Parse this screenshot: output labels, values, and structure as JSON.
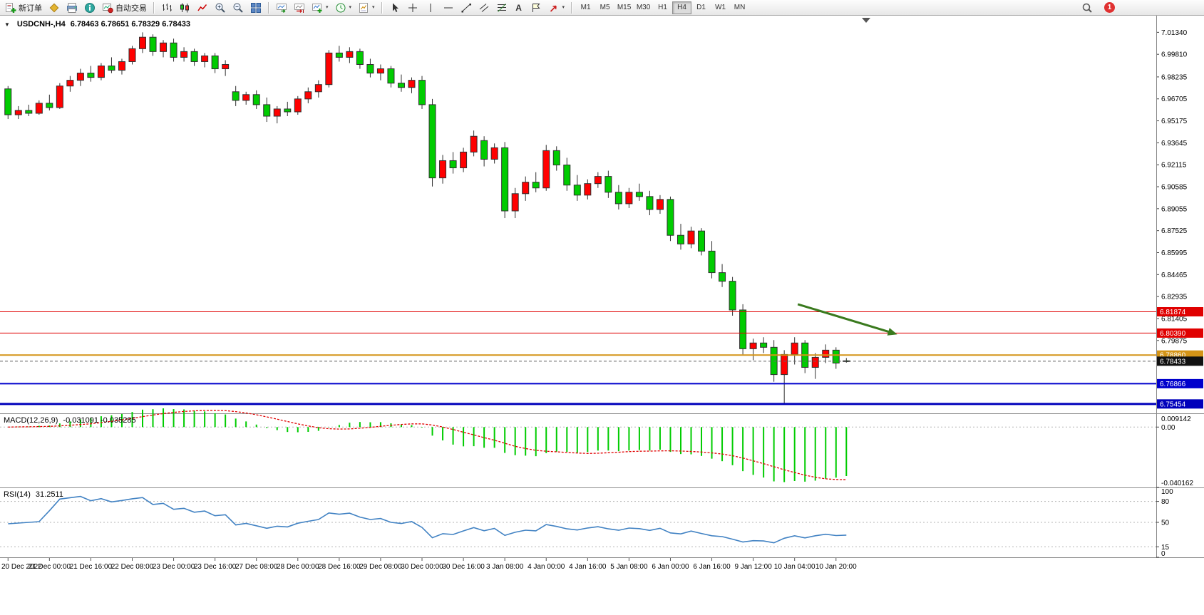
{
  "toolbar": {
    "new_order_label": "新订单",
    "auto_trading_label": "自动交易",
    "timeframes": [
      "M1",
      "M5",
      "M15",
      "M30",
      "H1",
      "H4",
      "D1",
      "W1",
      "MN"
    ],
    "active_timeframe": "H4",
    "notification_count": "1",
    "icon_glyphs": {
      "crosshair": "+",
      "text_tool": "A",
      "dropdown": "▾",
      "one_click": "▼"
    }
  },
  "chart": {
    "title_symbol": "USDCNH-,H4",
    "title_ohlc": "6.78463 6.78651 6.78329 6.78433"
  },
  "chart_data": {
    "type": "candlestick",
    "symbol": "USDCNH-",
    "period": "H4",
    "price_axis": {
      "max": 7.025,
      "min": 6.748,
      "ticks": [
        "7.01340",
        "6.99810",
        "6.98235",
        "6.96705",
        "6.95175",
        "6.93645",
        "6.92115",
        "6.90585",
        "6.89055",
        "6.87525",
        "6.85995",
        "6.84465",
        "6.82935",
        "6.81405",
        "6.79875"
      ]
    },
    "time_labels": [
      "20 Dec 2022",
      "21 Dec 00:00",
      "21 Dec 16:00",
      "22 Dec 08:00",
      "23 Dec 00:00",
      "23 Dec 16:00",
      "27 Dec 08:00",
      "28 Dec 00:00",
      "28 Dec 16:00",
      "29 Dec 08:00",
      "30 Dec 00:00",
      "30 Dec 16:00",
      "3 Jan 08:00",
      "4 Jan 00:00",
      "4 Jan 16:00",
      "5 Jan 08:00",
      "6 Jan 00:00",
      "6 Jan 16:00",
      "9 Jan 12:00",
      "10 Jan 04:00",
      "10 Jan 20:00"
    ],
    "bars_per_label": 4,
    "chart_shift_fraction": 0.734,
    "candles": [
      [
        6.974,
        6.976,
        6.953,
        6.956
      ],
      [
        6.956,
        6.962,
        6.953,
        6.959
      ],
      [
        6.959,
        6.963,
        6.955,
        6.957
      ],
      [
        6.957,
        6.966,
        6.956,
        6.964
      ],
      [
        6.964,
        6.97,
        6.959,
        6.961
      ],
      [
        6.961,
        6.978,
        6.96,
        6.976
      ],
      [
        6.976,
        6.983,
        6.972,
        6.98
      ],
      [
        6.98,
        6.988,
        6.976,
        6.985
      ],
      [
        6.985,
        6.99,
        6.979,
        6.982
      ],
      [
        6.982,
        6.992,
        6.98,
        6.99
      ],
      [
        6.99,
        6.996,
        6.985,
        6.987
      ],
      [
        6.987,
        6.995,
        6.984,
        6.993
      ],
      [
        6.993,
        7.004,
        6.991,
        7.002
      ],
      [
        7.002,
        7.0134,
        6.999,
        7.01
      ],
      [
        7.01,
        7.012,
        6.997,
        7.0
      ],
      [
        7.0,
        7.008,
        6.996,
        7.006
      ],
      [
        7.006,
        7.009,
        6.993,
        6.996
      ],
      [
        6.996,
        7.003,
        6.993,
        7.0
      ],
      [
        7.0,
        7.002,
        6.99,
        6.993
      ],
      [
        6.993,
        6.999,
        6.989,
        6.997
      ],
      [
        6.997,
        6.999,
        6.985,
        6.988
      ],
      [
        6.988,
        6.994,
        6.983,
        6.991
      ],
      [
        6.972,
        6.976,
        6.962,
        6.966
      ],
      [
        6.966,
        6.972,
        6.963,
        6.97
      ],
      [
        6.97,
        6.973,
        6.96,
        6.963
      ],
      [
        6.963,
        6.968,
        6.951,
        6.955
      ],
      [
        6.955,
        6.962,
        6.95,
        6.96
      ],
      [
        6.96,
        6.965,
        6.955,
        6.958
      ],
      [
        6.958,
        6.969,
        6.956,
        6.967
      ],
      [
        6.967,
        6.975,
        6.964,
        6.972
      ],
      [
        6.972,
        6.98,
        6.968,
        6.977
      ],
      [
        6.977,
        7.001,
        6.975,
        6.999
      ],
      [
        6.999,
        7.004,
        6.993,
        6.996
      ],
      [
        6.996,
        7.003,
        6.992,
        7.0
      ],
      [
        7.0,
        7.002,
        6.988,
        6.991
      ],
      [
        6.991,
        6.995,
        6.982,
        6.985
      ],
      [
        6.985,
        6.991,
        6.98,
        6.988
      ],
      [
        6.988,
        6.99,
        6.975,
        6.978
      ],
      [
        6.978,
        6.984,
        6.972,
        6.975
      ],
      [
        6.975,
        6.982,
        6.971,
        6.98
      ],
      [
        6.98,
        6.983,
        6.96,
        6.963
      ],
      [
        6.963,
        6.967,
        6.906,
        6.912
      ],
      [
        6.912,
        6.928,
        6.908,
        6.924
      ],
      [
        6.924,
        6.93,
        6.915,
        6.919
      ],
      [
        6.919,
        6.933,
        6.916,
        6.93
      ],
      [
        6.93,
        6.945,
        6.927,
        6.941
      ],
      [
        6.938,
        6.941,
        6.92,
        6.925
      ],
      [
        6.925,
        6.936,
        6.922,
        6.933
      ],
      [
        6.933,
        6.937,
        6.884,
        6.889
      ],
      [
        6.889,
        6.905,
        6.884,
        6.901
      ],
      [
        6.901,
        6.913,
        6.896,
        6.909
      ],
      [
        6.909,
        6.916,
        6.902,
        6.905
      ],
      [
        6.905,
        6.935,
        6.903,
        6.931
      ],
      [
        6.931,
        6.934,
        6.917,
        6.921
      ],
      [
        6.921,
        6.926,
        6.903,
        6.907
      ],
      [
        6.907,
        6.914,
        6.896,
        6.9
      ],
      [
        6.9,
        6.911,
        6.897,
        6.908
      ],
      [
        6.908,
        6.916,
        6.905,
        6.913
      ],
      [
        6.913,
        6.917,
        6.898,
        6.902
      ],
      [
        6.902,
        6.907,
        6.89,
        6.894
      ],
      [
        6.894,
        6.905,
        6.891,
        6.902
      ],
      [
        6.902,
        6.908,
        6.896,
        6.899
      ],
      [
        6.899,
        6.903,
        6.886,
        6.89
      ],
      [
        6.89,
        6.9,
        6.887,
        6.897
      ],
      [
        6.897,
        6.899,
        6.868,
        6.872
      ],
      [
        6.872,
        6.88,
        6.862,
        6.866
      ],
      [
        6.866,
        6.878,
        6.863,
        6.875
      ],
      [
        6.875,
        6.877,
        6.858,
        6.861
      ],
      [
        6.861,
        6.868,
        6.842,
        6.846
      ],
      [
        6.846,
        6.852,
        6.836,
        6.84
      ],
      [
        6.84,
        6.843,
        6.816,
        6.82
      ],
      [
        6.82,
        6.824,
        6.789,
        6.793
      ],
      [
        6.793,
        6.8,
        6.785,
        6.797
      ],
      [
        6.797,
        6.801,
        6.79,
        6.794
      ],
      [
        6.794,
        6.799,
        6.77,
        6.775
      ],
      [
        6.775,
        6.792,
        6.755,
        6.789
      ],
      [
        6.789,
        6.801,
        6.782,
        6.797
      ],
      [
        6.797,
        6.799,
        6.776,
        6.78
      ],
      [
        6.78,
        6.79,
        6.772,
        6.787
      ],
      [
        6.787,
        6.796,
        6.783,
        6.792
      ],
      [
        6.792,
        6.794,
        6.779,
        6.783
      ],
      [
        6.78463,
        6.78651,
        6.78329,
        6.78433
      ]
    ],
    "hlines": [
      {
        "price": 6.81874,
        "label": "6.81874",
        "color": "#E00000",
        "width": 1
      },
      {
        "price": 6.8039,
        "label": "6.80390",
        "color": "#E00000",
        "width": 1
      },
      {
        "price": 6.7886,
        "label": "6.78860",
        "color": "#D49417",
        "width": 2
      },
      {
        "price": 6.76866,
        "label": "6.76866",
        "color": "#0000CC",
        "width": 2
      },
      {
        "price": 6.75454,
        "label": "6.75454",
        "color": "#0000BB",
        "width": 3
      }
    ],
    "bid": {
      "price": 6.78433,
      "label": "6.78433",
      "tag_color": "#111111"
    },
    "trend_arrow": {
      "from": {
        "x": 0.69,
        "price": 6.824
      },
      "to": {
        "x": 0.776,
        "price": 6.803
      },
      "color": "#3A7A1E"
    },
    "indicators": {
      "macd": {
        "label": "MACD(12,26,9)",
        "values": "-0.031091 -0.035285",
        "fast": 12,
        "slow": 26,
        "signal": 9,
        "axis_max": "0.009142",
        "axis_zero": "0.00",
        "axis_min": "-0.040162",
        "range": [
          -0.040162,
          0.009142
        ],
        "histogram_color": "#00CC00",
        "signal_color": "#E00000"
      },
      "rsi": {
        "label": "RSI(14)",
        "value": "31.2511",
        "period": 14,
        "levels": [
          80,
          50,
          15
        ],
        "axis_labels": [
          "100",
          "80",
          "50",
          "15",
          "0"
        ],
        "range": [
          0,
          100
        ],
        "line_color": "#4182C3"
      }
    },
    "colors": {
      "up": "#FF0000",
      "down": "#00CC00",
      "outline": "#303030",
      "background": "#FFFFFF",
      "divider": "#8C8C8C"
    }
  }
}
